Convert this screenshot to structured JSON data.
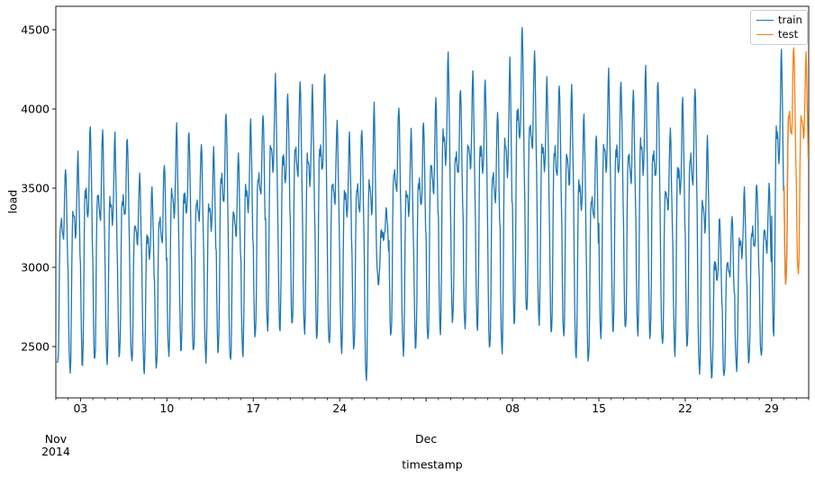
{
  "chart_data": {
    "type": "line",
    "title": "",
    "xlabel": "timestamp",
    "ylabel": "load",
    "x_start_date": "2014-11-01",
    "x_end_date": "2015-01-01",
    "xlim_days": [
      0,
      61
    ],
    "ylim": [
      2176,
      4648
    ],
    "yticks": [
      2500,
      3000,
      3500,
      4000,
      4500
    ],
    "x_major_ticks": [
      {
        "day": 2,
        "label": "03"
      },
      {
        "day": 9,
        "label": "10"
      },
      {
        "day": 16,
        "label": "17"
      },
      {
        "day": 23,
        "label": "24"
      },
      {
        "day": 30,
        "label": ""
      },
      {
        "day": 37,
        "label": "08"
      },
      {
        "day": 44,
        "label": "15"
      },
      {
        "day": 51,
        "label": "22"
      },
      {
        "day": 58,
        "label": "29"
      }
    ],
    "x_minor_tick_every_days": 1,
    "month_labels": [
      {
        "day": 0,
        "lines": [
          "Nov",
          "2014"
        ]
      },
      {
        "day": 30,
        "lines": [
          "Dec"
        ]
      }
    ],
    "grid": false,
    "legend": {
      "position": "upper right",
      "entries": [
        {
          "label": "train",
          "color": "#1f77b4"
        },
        {
          "label": "test",
          "color": "#ff7f0e"
        }
      ]
    },
    "series": [
      {
        "name": "train",
        "color": "#1f77b4",
        "start_day": 0,
        "start_hour": 3,
        "end_day": 59,
        "end_hour": 9
      },
      {
        "name": "test",
        "color": "#ff7f0e",
        "start_day": 59,
        "start_hour": 0,
        "end_day": 60,
        "end_hour": 23
      }
    ],
    "daily_shape_24h": [
      0.42,
      0.22,
      0.08,
      0.01,
      0.0,
      0.06,
      0.22,
      0.48,
      0.66,
      0.72,
      0.7,
      0.72,
      0.69,
      0.65,
      0.62,
      0.63,
      0.7,
      0.83,
      0.96,
      1.0,
      0.93,
      0.8,
      0.66,
      0.52
    ],
    "daily_min_peak": [
      [
        2380,
        3650
      ],
      [
        2350,
        3720
      ],
      [
        2400,
        3890
      ],
      [
        2420,
        3860
      ],
      [
        2400,
        3830
      ],
      [
        2430,
        3840
      ],
      [
        2400,
        3600
      ],
      [
        2360,
        3500
      ],
      [
        2380,
        3650
      ],
      [
        2450,
        3880
      ],
      [
        2470,
        3860
      ],
      [
        2450,
        3800
      ],
      [
        2420,
        3750
      ],
      [
        2480,
        3980
      ],
      [
        2420,
        3700
      ],
      [
        2450,
        3920
      ],
      [
        2550,
        3990
      ],
      [
        2600,
        4220
      ],
      [
        2620,
        4100
      ],
      [
        2650,
        4170
      ],
      [
        2600,
        4120
      ],
      [
        2550,
        4240
      ],
      [
        2500,
        3940
      ],
      [
        2480,
        3850
      ],
      [
        2500,
        3880
      ],
      [
        2300,
        4010
      ],
      [
        2900,
        3360
      ],
      [
        2550,
        4030
      ],
      [
        2450,
        3870
      ],
      [
        2500,
        3930
      ],
      [
        2550,
        4060
      ],
      [
        2600,
        4330
      ],
      [
        2650,
        4140
      ],
      [
        2600,
        4240
      ],
      [
        2620,
        4190
      ],
      [
        2500,
        3990
      ],
      [
        2480,
        4290
      ],
      [
        2650,
        4520
      ],
      [
        2700,
        4380
      ],
      [
        2650,
        4200
      ],
      [
        2600,
        4170
      ],
      [
        2580,
        4130
      ],
      [
        2450,
        3950
      ],
      [
        2400,
        3850
      ],
      [
        2550,
        4250
      ],
      [
        2600,
        4190
      ],
      [
        2620,
        4120
      ],
      [
        2600,
        4240
      ],
      [
        2560,
        4180
      ],
      [
        2500,
        3880
      ],
      [
        2450,
        4080
      ],
      [
        2500,
        4150
      ],
      [
        2350,
        3800
      ],
      [
        2320,
        3300
      ],
      [
        2300,
        3330
      ],
      [
        2350,
        3500
      ],
      [
        2400,
        3550
      ],
      [
        2450,
        3520
      ],
      [
        2600,
        4350
      ],
      [
        2900,
        4400
      ],
      [
        2950,
        4350
      ]
    ],
    "noise_amplitude": 38
  }
}
